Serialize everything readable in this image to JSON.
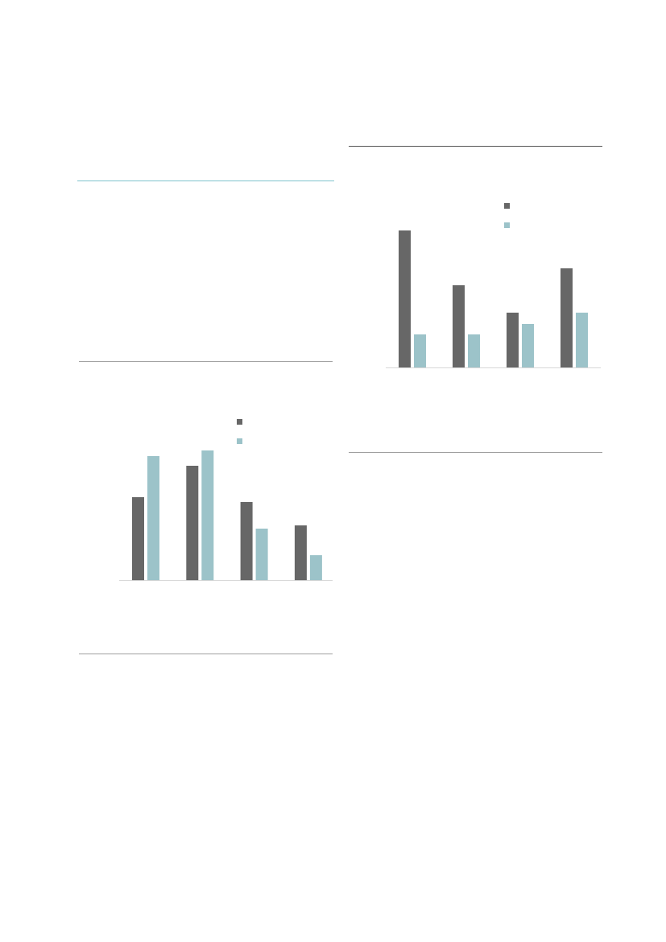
{
  "colors": {
    "accent_rule": "#7fc3cc",
    "dark_series": "#676767",
    "light_series": "#9cc3c9",
    "rule": "#a0a0a0",
    "top_rule": "#555555",
    "baseline": "#d8d8d8"
  },
  "chart_data": [
    {
      "type": "bar",
      "categories": [
        "",
        "",
        "",
        ""
      ],
      "series": [
        {
          "values": [
            103,
            142,
            97,
            68
          ]
        },
        {
          "values": [
            154,
            161,
            64,
            31
          ]
        }
      ],
      "ylim": [
        0,
        175
      ],
      "grid": false,
      "legend": "top-right"
    },
    {
      "type": "bar",
      "categories": [
        "",
        "",
        "",
        ""
      ],
      "series": [
        {
          "values": [
            170,
            102,
            68,
            123
          ]
        },
        {
          "values": [
            41,
            41,
            54,
            68
          ]
        }
      ],
      "ylim": [
        0,
        175
      ],
      "grid": false,
      "legend": "top-right"
    }
  ]
}
